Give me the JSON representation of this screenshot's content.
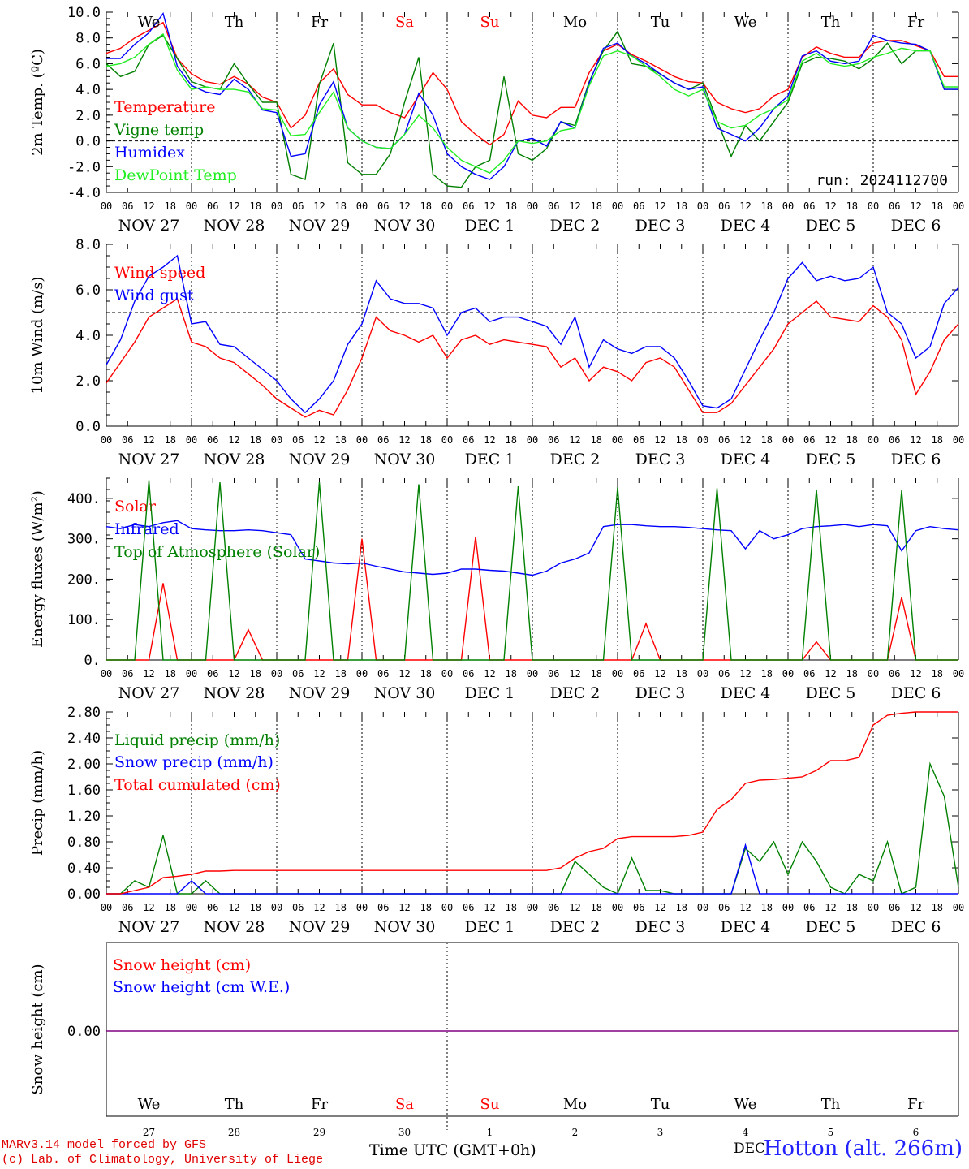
{
  "days": {
    "names": [
      "We",
      "Th",
      "Fr",
      "Sa",
      "Su",
      "Mo",
      "Tu",
      "We",
      "Th",
      "Fr"
    ],
    "weekend_color": "#ff0000",
    "dates": [
      "NOV 27",
      "NOV 28",
      "NOV 29",
      "NOV 30",
      "DEC  1",
      "DEC  2",
      "DEC  3",
      "DEC  4",
      "DEC  5",
      "DEC  6"
    ],
    "hours": [
      "00",
      "06",
      "12",
      "18"
    ],
    "last_hour": "00",
    "bottom_numbers": [
      "27",
      "28",
      "29",
      "30",
      "1",
      "2",
      "3",
      "4",
      "5",
      "6"
    ]
  },
  "run_label": "run: 2024112700",
  "footer": {
    "model": "MARv3.14 model forced by GFS",
    "credit": "(c) Lab. of Climatology, University of Liege",
    "x_title": "Time UTC (GMT+0h)",
    "station": "Hotton (alt. 266m)",
    "overlap_text": "DEC"
  },
  "chart_data": [
    {
      "type": "line",
      "ylabel": "2m Temp. (ºC)",
      "ylim": [
        -4,
        10
      ],
      "yticks": [
        "-4.0",
        "-2.0",
        "0.0",
        "2.0",
        "4.0",
        "6.0",
        "8.0",
        "10.0"
      ],
      "reference_line": 0,
      "x_unit": "hours since 2024-11-27 00 UTC, 3-hourly",
      "series": [
        {
          "name": "Temperature",
          "color": "#ff0000",
          "values": [
            6.8,
            7.2,
            8.0,
            8.6,
            9.2,
            6.4,
            5.2,
            4.6,
            4.4,
            5.0,
            4.4,
            3.4,
            3.0,
            1.0,
            2.0,
            4.5,
            5.6,
            3.6,
            2.8,
            2.8,
            2.2,
            1.8,
            3.5,
            5.3,
            4.0,
            1.5,
            0.5,
            -0.3,
            0.5,
            3.1,
            2.0,
            1.8,
            2.6,
            2.6,
            5.3,
            7.0,
            7.5,
            6.7,
            6.2,
            5.6,
            5.0,
            4.6,
            4.5,
            3.0,
            2.5,
            2.2,
            2.5,
            3.5,
            4.0,
            6.5,
            7.3,
            6.8,
            6.5,
            6.5,
            7.6,
            7.8,
            7.8,
            7.4,
            7.0,
            5.0,
            5.0
          ]
        },
        {
          "name": "Vigne temp",
          "color": "#008000",
          "values": [
            6.0,
            5.0,
            5.4,
            7.5,
            8.2,
            6.4,
            4.6,
            4.2,
            4.0,
            6.0,
            4.4,
            3.0,
            3.0,
            -2.6,
            -3.0,
            4.4,
            7.6,
            -1.7,
            -2.6,
            -2.6,
            -1.0,
            3.0,
            6.5,
            -2.6,
            -3.5,
            -3.6,
            -2.0,
            -1.5,
            5.0,
            -1.0,
            -1.5,
            -0.6,
            1.5,
            1.2,
            4.6,
            7.0,
            8.5,
            6.0,
            5.8,
            5.2,
            4.5,
            4.0,
            4.5,
            1.6,
            -1.2,
            1.2,
            0.0,
            1.5,
            3.0,
            6.0,
            6.5,
            6.4,
            6.2,
            5.6,
            6.4,
            7.6,
            6.0,
            7.0,
            7.0,
            4.0,
            4.0
          ]
        },
        {
          "name": "Humidex",
          "color": "#0000ff",
          "values": [
            6.4,
            6.4,
            7.5,
            8.4,
            9.9,
            5.8,
            4.3,
            3.8,
            3.6,
            4.8,
            4.0,
            2.4,
            2.2,
            -1.2,
            -1.0,
            2.8,
            4.6,
            1.0,
            0.0,
            -0.5,
            -0.6,
            0.5,
            3.7,
            2.0,
            -1.0,
            -2.0,
            -2.6,
            -3.0,
            -2.0,
            0.0,
            0.2,
            -0.4,
            1.5,
            1.0,
            4.5,
            7.2,
            7.6,
            6.6,
            6.0,
            5.2,
            4.5,
            4.0,
            4.2,
            1.0,
            0.5,
            0.0,
            1.0,
            2.5,
            3.5,
            6.6,
            7.0,
            6.2,
            6.0,
            6.2,
            8.2,
            7.8,
            7.6,
            7.5,
            7.0,
            4.0,
            4.0
          ]
        },
        {
          "name": "DewPoint Temp",
          "color": "#22ee22",
          "values": [
            5.8,
            6.0,
            6.5,
            7.5,
            8.3,
            5.5,
            4.0,
            4.2,
            4.0,
            4.0,
            3.8,
            2.5,
            2.4,
            0.4,
            0.5,
            2.2,
            3.8,
            1.0,
            0.0,
            -0.5,
            -0.6,
            0.5,
            2.0,
            1.0,
            -0.5,
            -1.5,
            -2.0,
            -2.5,
            -1.5,
            0.0,
            -0.2,
            0.0,
            0.8,
            1.0,
            4.3,
            6.6,
            7.0,
            6.6,
            5.8,
            5.0,
            4.0,
            3.5,
            4.0,
            1.5,
            1.0,
            1.2,
            2.0,
            2.5,
            3.2,
            6.2,
            6.8,
            6.0,
            5.8,
            6.0,
            6.5,
            6.8,
            7.2,
            7.0,
            7.0,
            4.2,
            4.2
          ]
        }
      ]
    },
    {
      "type": "line",
      "ylabel": "10m Wind (m/s)",
      "ylim": [
        0,
        8
      ],
      "yticks": [
        "0.0",
        "2.0",
        "4.0",
        "6.0",
        "8.0"
      ],
      "reference_line": 5,
      "series": [
        {
          "name": "Wind speed",
          "color": "#ff0000",
          "values": [
            1.9,
            2.8,
            3.7,
            4.8,
            5.2,
            5.6,
            3.7,
            3.5,
            3.0,
            2.8,
            2.3,
            1.8,
            1.2,
            0.8,
            0.4,
            0.7,
            0.5,
            1.6,
            3.0,
            4.8,
            4.2,
            4.0,
            3.7,
            4.0,
            3.0,
            3.8,
            4.0,
            3.6,
            3.8,
            3.7,
            3.6,
            3.5,
            2.6,
            3.0,
            2.0,
            2.6,
            2.4,
            2.0,
            2.8,
            3.0,
            2.6,
            1.6,
            0.6,
            0.6,
            1.0,
            1.8,
            2.6,
            3.4,
            4.5,
            5.0,
            5.5,
            4.8,
            4.7,
            4.6,
            5.3,
            4.8,
            3.8,
            1.4,
            2.4,
            3.8,
            4.5
          ]
        },
        {
          "name": "Wind gust",
          "color": "#0000ff",
          "values": [
            2.7,
            3.8,
            5.5,
            6.6,
            7.0,
            7.5,
            4.5,
            4.6,
            3.6,
            3.5,
            3.0,
            2.5,
            2.0,
            1.2,
            0.6,
            1.2,
            2.0,
            3.6,
            4.5,
            6.4,
            5.6,
            5.4,
            5.4,
            5.2,
            4.0,
            5.0,
            5.2,
            4.6,
            4.8,
            4.8,
            4.6,
            4.4,
            3.6,
            4.8,
            2.6,
            3.8,
            3.4,
            3.2,
            3.5,
            3.5,
            3.0,
            2.0,
            0.9,
            0.8,
            1.2,
            2.5,
            3.8,
            5.0,
            6.5,
            7.2,
            6.4,
            6.6,
            6.4,
            6.5,
            7.0,
            5.0,
            4.5,
            3.0,
            3.5,
            5.4,
            6.1
          ]
        }
      ]
    },
    {
      "type": "line",
      "ylabel": "Energy fluxes (W/m²)",
      "ylim": [
        0,
        450
      ],
      "yticks": [
        "0.",
        "100.",
        "200.",
        "300.",
        "400."
      ],
      "series": [
        {
          "name": "Solar",
          "color": "#ff0000",
          "values": [
            0,
            0,
            0,
            0,
            190,
            0,
            0,
            0,
            0,
            0,
            75,
            0,
            0,
            0,
            0,
            0,
            0,
            0,
            300,
            0,
            0,
            0,
            0,
            0,
            0,
            0,
            305,
            0,
            0,
            0,
            0,
            0,
            0,
            0,
            0,
            0,
            0,
            0,
            90,
            0,
            0,
            0,
            0,
            0,
            0,
            0,
            0,
            0,
            0,
            0,
            45,
            0,
            0,
            0,
            0,
            0,
            155,
            0,
            0,
            0,
            0
          ]
        },
        {
          "name": "Infrared",
          "color": "#0000ff",
          "values": [
            330,
            325,
            335,
            330,
            340,
            345,
            325,
            322,
            320,
            320,
            322,
            320,
            315,
            310,
            250,
            245,
            240,
            238,
            240,
            232,
            225,
            218,
            215,
            212,
            215,
            225,
            225,
            222,
            220,
            215,
            210,
            220,
            240,
            250,
            265,
            330,
            335,
            335,
            332,
            330,
            330,
            328,
            325,
            322,
            320,
            275,
            320,
            300,
            310,
            325,
            330,
            332,
            335,
            330,
            335,
            332,
            270,
            320,
            330,
            325,
            322
          ]
        },
        {
          "name": "Top of Atmosphere (Solar)",
          "color": "#008000",
          "values": [
            0,
            0,
            0,
            445,
            0,
            0,
            0,
            0,
            440,
            0,
            0,
            0,
            0,
            0,
            0,
            440,
            0,
            0,
            0,
            0,
            0,
            0,
            435,
            0,
            0,
            0,
            0,
            0,
            0,
            430,
            0,
            0,
            0,
            0,
            0,
            0,
            428,
            0,
            0,
            0,
            0,
            0,
            0,
            425,
            0,
            0,
            0,
            0,
            0,
            0,
            422,
            0,
            0,
            0,
            0,
            0,
            420,
            0,
            0,
            0,
            0
          ]
        }
      ]
    },
    {
      "type": "line",
      "ylabel": "Precip (mm/h)",
      "ylim": [
        0,
        2.8
      ],
      "yticks": [
        "0.00",
        "0.40",
        "0.80",
        "1.20",
        "1.60",
        "2.00",
        "2.40",
        "2.80"
      ],
      "series": [
        {
          "name": "Liquid precip (mm/h)",
          "color": "#008000",
          "values": [
            0,
            0,
            0.2,
            0.1,
            0.9,
            0,
            0,
            0.2,
            0,
            0,
            0,
            0,
            0,
            0,
            0,
            0,
            0,
            0,
            0,
            0,
            0,
            0,
            0,
            0,
            0,
            0,
            0,
            0,
            0,
            0,
            0,
            0,
            0,
            0.5,
            0.3,
            0.1,
            0,
            0.55,
            0.05,
            0.05,
            0,
            0,
            0,
            0,
            0,
            0.7,
            0.5,
            0.8,
            0.3,
            0.8,
            0.5,
            0.1,
            0,
            0.3,
            0.2,
            0.8,
            0,
            0.1,
            2.0,
            1.5,
            0.1
          ]
        },
        {
          "name": "Snow precip (mm/h)",
          "color": "#0000ff",
          "values": [
            0,
            0,
            0,
            0,
            0,
            0,
            0.2,
            0,
            0,
            0,
            0,
            0,
            0,
            0,
            0,
            0,
            0,
            0,
            0,
            0,
            0,
            0,
            0,
            0,
            0,
            0,
            0,
            0,
            0,
            0,
            0,
            0,
            0,
            0,
            0,
            0,
            0,
            0,
            0,
            0,
            0,
            0,
            0,
            0,
            0,
            0.75,
            0,
            0,
            0,
            0,
            0,
            0,
            0,
            0,
            0,
            0,
            0,
            0,
            0,
            0,
            0
          ]
        },
        {
          "name": "Total cumulated (cm)",
          "color": "#ff0000",
          "values": [
            0,
            0,
            0.05,
            0.1,
            0.25,
            0.27,
            0.3,
            0.35,
            0.35,
            0.36,
            0.36,
            0.36,
            0.36,
            0.36,
            0.36,
            0.36,
            0.36,
            0.36,
            0.36,
            0.36,
            0.36,
            0.36,
            0.36,
            0.36,
            0.36,
            0.36,
            0.36,
            0.36,
            0.36,
            0.36,
            0.36,
            0.36,
            0.4,
            0.55,
            0.65,
            0.7,
            0.85,
            0.88,
            0.88,
            0.88,
            0.88,
            0.9,
            0.95,
            1.3,
            1.45,
            1.7,
            1.75,
            1.76,
            1.78,
            1.8,
            1.9,
            2.05,
            2.05,
            2.1,
            2.6,
            2.75,
            2.78,
            2.8,
            2.8,
            2.8,
            2.8
          ]
        }
      ]
    },
    {
      "type": "line",
      "ylabel": "Snow height (cm)",
      "yticks": [
        "0.00"
      ],
      "series": [
        {
          "name": "Snow height (cm)",
          "color": "#ff0000",
          "values": [
            0,
            0
          ]
        },
        {
          "name": "Snow height (cm W.E.)",
          "color": "#0000ff",
          "values": [
            0,
            0
          ]
        }
      ]
    }
  ]
}
